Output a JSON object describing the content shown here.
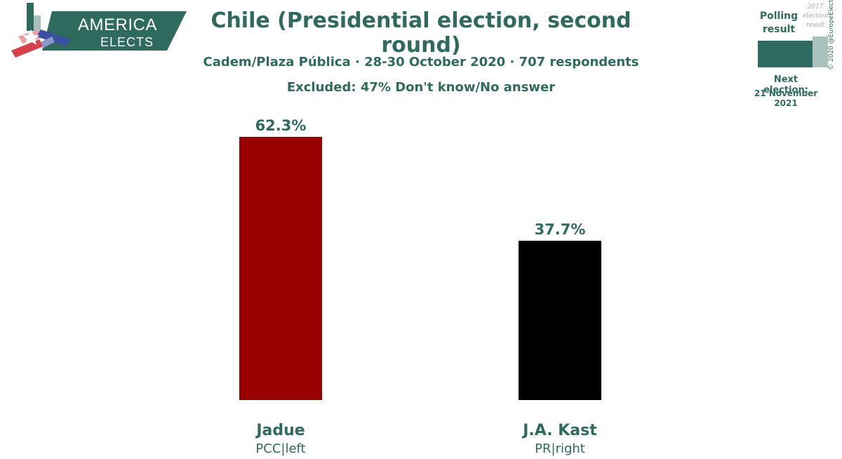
{
  "logo": {
    "line1": "AMERICA",
    "line2": "ELECTS"
  },
  "legend": {
    "polling_label": "Polling result",
    "previous_label": "2017 election result",
    "next_election_label": "Next election:",
    "next_election_date": "21 November 2021",
    "copyright": "© 2020 @EuropeElects",
    "colors": {
      "polling": "#2e6b5e",
      "previous": "#a8c2bb"
    }
  },
  "chart_data": {
    "type": "bar",
    "title": "Chile (Presidential election, second round)",
    "subtitle": "Cadem/Plaza Pública · 28-30 October 2020 · 707 respondents",
    "note": "Excluded: 47% Don't know/No answer",
    "categories": [
      "Jadue",
      "J.A. Kast"
    ],
    "sublabels": [
      "PCC|left",
      "PR|right"
    ],
    "values": [
      62.3,
      37.7
    ],
    "value_labels": [
      "62.3%",
      "37.7%"
    ],
    "colors": [
      "#990000",
      "#000000"
    ],
    "ylim": [
      0,
      62.3
    ],
    "grid": false
  }
}
